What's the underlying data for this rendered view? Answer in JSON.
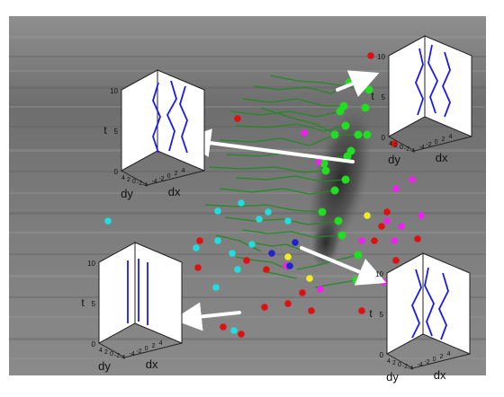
{
  "insets": [
    {
      "name": "inset-top-left",
      "t_axis_label": "t",
      "t_ticks": [
        "10",
        "5",
        "0"
      ],
      "dy_label": "dy",
      "dx_label": "dx",
      "dy_ticks": [
        "4",
        "2",
        "0",
        "-2",
        "-4"
      ],
      "dx_ticks": [
        "-4",
        "-2",
        "0",
        "2",
        "4"
      ]
    },
    {
      "name": "inset-top-right",
      "t_axis_label": "t",
      "t_ticks": [
        "10",
        "5",
        "0"
      ],
      "dy_label": "dy",
      "dx_label": "dx",
      "dy_ticks": [
        "4",
        "2",
        "0",
        "-2",
        "-4"
      ],
      "dx_ticks": [
        "-4",
        "-2",
        "0",
        "2",
        "4"
      ]
    },
    {
      "name": "inset-bottom-left",
      "t_axis_label": "t",
      "t_ticks": [
        "10",
        "5",
        "0"
      ],
      "dy_label": "dy",
      "dx_label": "dx",
      "dy_ticks": [
        "4",
        "2",
        "0",
        "-2",
        "-4"
      ],
      "dx_ticks": [
        "-4",
        "-2",
        "0",
        "2",
        "4"
      ]
    },
    {
      "name": "inset-bottom-right",
      "t_axis_label": "t",
      "t_ticks": [
        "10",
        "5",
        "0"
      ],
      "dy_label": "dy",
      "dx_label": "dx",
      "dy_ticks": [
        "4",
        "2",
        "0",
        "-2",
        "-4"
      ],
      "dx_ticks": [
        "-4",
        "-2",
        "0",
        "2",
        "4"
      ]
    }
  ],
  "colors": {
    "background_gray": "#7a7a7a",
    "trajectory_green": "#1f8a1f",
    "point_green": "#22dd22",
    "point_cyan": "#22dddd",
    "point_red": "#dd1111",
    "point_magenta": "#ee22ee",
    "point_yellow": "#eeee22",
    "point_blue": "#2222cc",
    "inset_curve": "#1a1aee",
    "arrow": "#ffffff"
  }
}
